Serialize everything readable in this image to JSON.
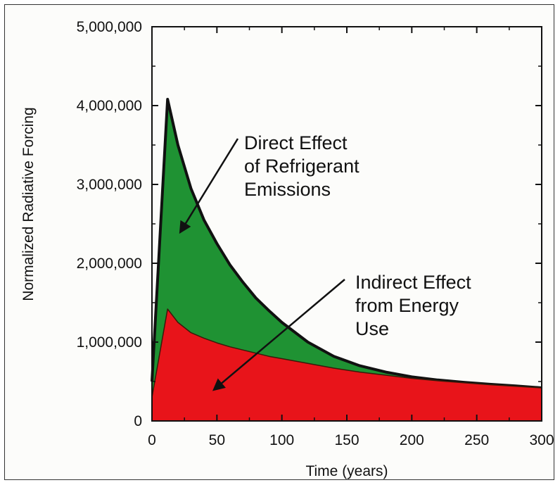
{
  "chart_data": {
    "type": "area",
    "stacked": true,
    "xlabel": "Time (years)",
    "ylabel": "Normalized Radiative Forcing",
    "xlim": [
      0,
      300
    ],
    "ylim": [
      0,
      5000000
    ],
    "x_ticks": [
      "0",
      "50",
      "100",
      "150",
      "200",
      "250",
      "300"
    ],
    "y_ticks": [
      "0",
      "1,000,000",
      "2,000,000",
      "3,000,000",
      "4,000,000",
      "5,000,000"
    ],
    "grid": false,
    "legend": "none",
    "x": [
      0,
      12,
      20,
      30,
      40,
      50,
      60,
      70,
      80,
      90,
      100,
      120,
      140,
      160,
      180,
      200,
      220,
      240,
      260,
      280,
      300
    ],
    "series": [
      {
        "color": "#e8141a",
        "total": [
          300000,
          1420000,
          1250000,
          1120000,
          1050000,
          990000,
          940000,
          900000,
          860000,
          820000,
          790000,
          730000,
          670000,
          620000,
          580000,
          540000,
          510000,
          485000,
          460000,
          440000,
          420000
        ]
      },
      {
        "color": "#1f9233",
        "total": [
          500000,
          4080000,
          3500000,
          2950000,
          2550000,
          2250000,
          1980000,
          1760000,
          1560000,
          1400000,
          1250000,
          1000000,
          820000,
          700000,
          620000,
          560000,
          520000,
          490000,
          465000,
          445000,
          420000
        ]
      }
    ],
    "annotations": [
      {
        "lines": [
          "Direct Effect",
          "of Refrigerant",
          "Emissions"
        ],
        "arrow_to": [
          22,
          2400000
        ]
      },
      {
        "lines": [
          "Indirect Effect",
          "from Energy",
          "Use"
        ],
        "arrow_to": [
          48,
          400000
        ]
      }
    ]
  }
}
